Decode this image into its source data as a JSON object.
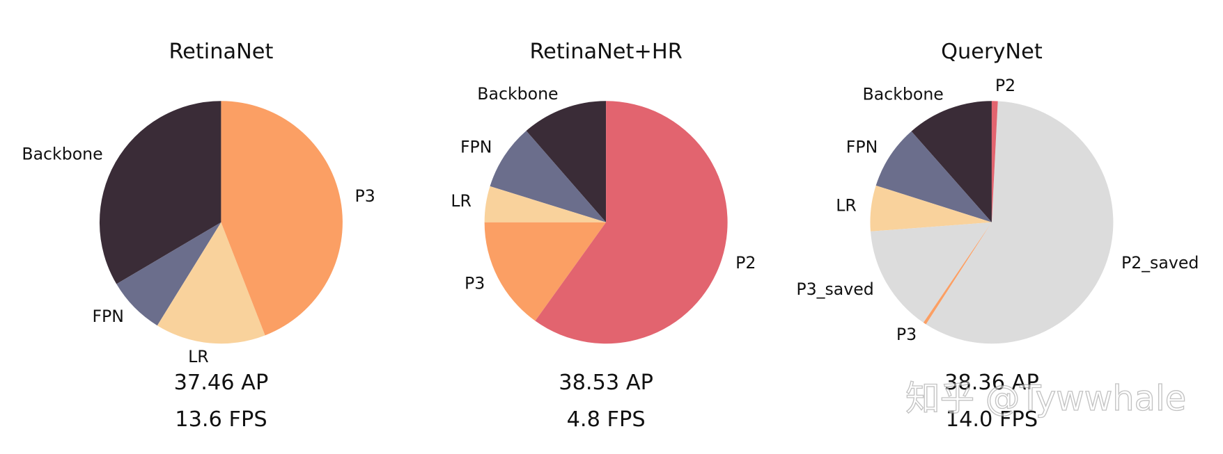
{
  "chart_data": [
    {
      "type": "pie",
      "title": "RetinaNet",
      "categories": [
        "Backbone",
        "FPN",
        "LR",
        "P3"
      ],
      "values": [
        33.5,
        7.7,
        14.7,
        44.1
      ],
      "colors": [
        "#3a2c37",
        "#6b6e8c",
        "#f9d29c",
        "#fb9f64"
      ],
      "annotations": [
        "37.46 AP",
        "13.6 FPS"
      ]
    },
    {
      "type": "pie",
      "title": "RetinaNet+HR",
      "categories": [
        "Backbone",
        "FPN",
        "LR",
        "P3",
        "P2"
      ],
      "values": [
        11.4,
        8.8,
        4.8,
        15.1,
        59.9
      ],
      "colors": [
        "#3a2c37",
        "#6b6e8c",
        "#f9d29c",
        "#fb9f64",
        "#e2646f"
      ],
      "annotations": [
        "38.53 AP",
        "4.8 FPS"
      ]
    },
    {
      "type": "pie",
      "title": "QueryNet",
      "categories": [
        "Backbone",
        "FPN",
        "LR",
        "P3_saved",
        "P3",
        "P2_saved",
        "P2"
      ],
      "values": [
        11.5,
        8.6,
        6.1,
        14.3,
        0.4,
        58.3,
        0.8
      ],
      "colors": [
        "#3a2c37",
        "#6b6e8c",
        "#f9d29c",
        "#dcdcdc",
        "#fb9f64",
        "#dcdcdc",
        "#e2646f"
      ],
      "annotations": [
        "38.36 AP",
        "14.0 FPS"
      ]
    }
  ],
  "watermark": "知乎 @Tywwhale"
}
